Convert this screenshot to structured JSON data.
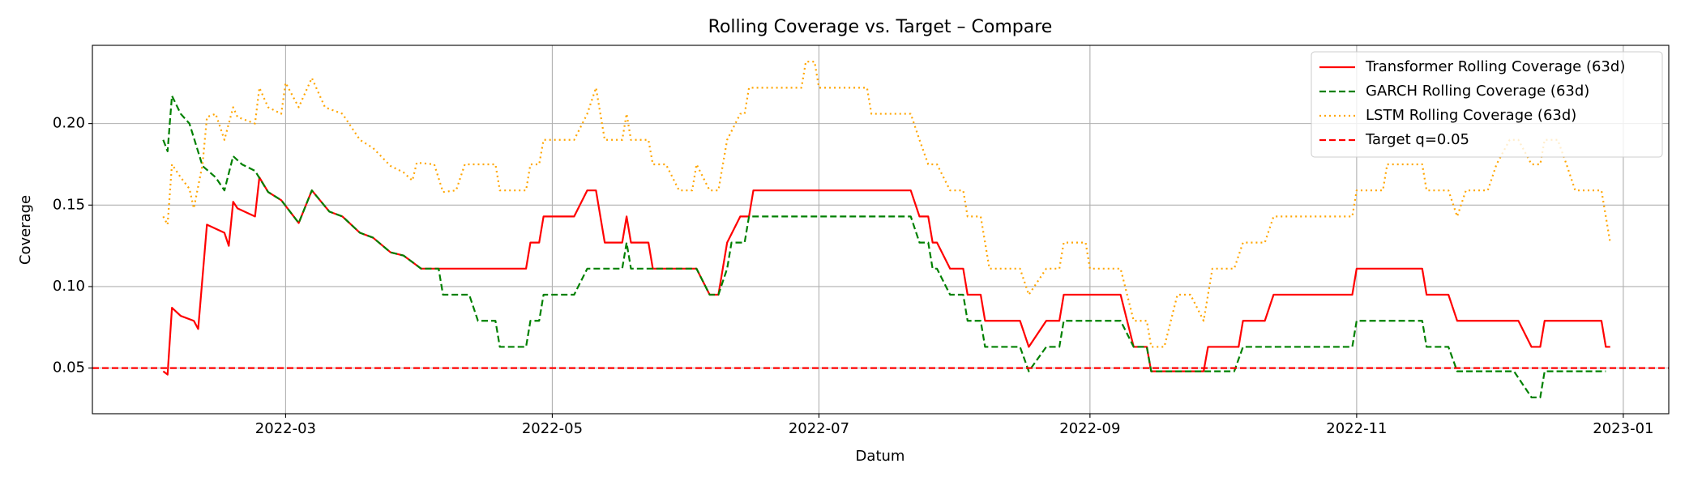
{
  "chart_data": {
    "type": "line",
    "title": "Rolling Coverage vs. Target – Compare",
    "xlabel": "Datum",
    "ylabel": "Coverage",
    "xlim": [
      14.8,
      375.4
    ],
    "ylim": [
      0.022,
      0.248
    ],
    "xticks": [
      {
        "value": 59,
        "label": "2022-03"
      },
      {
        "value": 120,
        "label": "2022-05"
      },
      {
        "value": 181,
        "label": "2022-07"
      },
      {
        "value": 243,
        "label": "2022-09"
      },
      {
        "value": 304,
        "label": "2022-11"
      },
      {
        "value": 365,
        "label": "2023-01"
      }
    ],
    "yticks": [
      0.05,
      {
        "value": 0.1,
        "label": "0.10"
      },
      0.15,
      {
        "value": 0.2,
        "label": "0.20"
      }
    ],
    "grid": true,
    "legend": "upper right",
    "series": [
      {
        "name": "Transformer Rolling Coverage (63d)",
        "color": "red",
        "style": "solid",
        "x": [
          31,
          32,
          33,
          35,
          38,
          39,
          41,
          45,
          46,
          47,
          48,
          52,
          53,
          55,
          58,
          62,
          65,
          69,
          72,
          76,
          79,
          83,
          86,
          90,
          114,
          115,
          117,
          118,
          125,
          128,
          130,
          132,
          136,
          137,
          138,
          142,
          143,
          153,
          156,
          158,
          160,
          163,
          165,
          166,
          202,
          204,
          206,
          207,
          208,
          211,
          214,
          215,
          218,
          219,
          227,
          229,
          233,
          236,
          237,
          250,
          253,
          256,
          257,
          269,
          270,
          277,
          278,
          283,
          285,
          303,
          304,
          319,
          320,
          325,
          327,
          341,
          344,
          346,
          347,
          360,
          361,
          362
        ],
        "values": [
          0.048,
          0.046,
          0.087,
          0.082,
          0.079,
          0.074,
          0.138,
          0.133,
          0.125,
          0.152,
          0.148,
          0.143,
          0.167,
          0.158,
          0.153,
          0.139,
          0.159,
          0.146,
          0.143,
          0.133,
          0.13,
          0.121,
          0.119,
          0.111,
          0.111,
          0.127,
          0.127,
          0.143,
          0.143,
          0.159,
          0.159,
          0.127,
          0.127,
          0.143,
          0.127,
          0.127,
          0.111,
          0.111,
          0.095,
          0.095,
          0.127,
          0.143,
          0.143,
          0.159,
          0.159,
          0.143,
          0.143,
          0.127,
          0.127,
          0.111,
          0.111,
          0.095,
          0.095,
          0.079,
          0.079,
          0.063,
          0.079,
          0.079,
          0.095,
          0.095,
          0.063,
          0.063,
          0.048,
          0.048,
          0.063,
          0.063,
          0.079,
          0.079,
          0.095,
          0.095,
          0.111,
          0.111,
          0.095,
          0.095,
          0.079,
          0.079,
          0.063,
          0.063,
          0.079,
          0.079,
          0.063,
          0.063
        ]
      },
      {
        "name": "GARCH Rolling Coverage (63d)",
        "color": "green",
        "style": "dashed",
        "x": [
          31,
          32,
          33,
          35,
          37,
          40,
          43,
          45,
          47,
          49,
          52,
          55,
          58,
          62,
          65,
          69,
          72,
          76,
          79,
          83,
          86,
          90,
          94,
          95,
          101,
          103,
          107,
          108,
          114,
          115,
          117,
          118,
          125,
          128,
          136,
          137,
          138,
          153,
          156,
          158,
          160,
          161,
          164,
          165,
          202,
          204,
          206,
          207,
          208,
          211,
          214,
          215,
          218,
          219,
          227,
          229,
          233,
          236,
          237,
          250,
          253,
          256,
          257,
          276,
          278,
          303,
          304,
          319,
          320,
          325,
          327,
          340,
          344,
          346,
          347,
          361
        ],
        "values": [
          0.19,
          0.183,
          0.217,
          0.206,
          0.2,
          0.174,
          0.167,
          0.159,
          0.18,
          0.175,
          0.171,
          0.158,
          0.153,
          0.139,
          0.159,
          0.146,
          0.143,
          0.133,
          0.13,
          0.121,
          0.119,
          0.111,
          0.111,
          0.095,
          0.095,
          0.079,
          0.079,
          0.063,
          0.063,
          0.079,
          0.079,
          0.095,
          0.095,
          0.111,
          0.111,
          0.127,
          0.111,
          0.111,
          0.095,
          0.095,
          0.111,
          0.127,
          0.127,
          0.143,
          0.143,
          0.127,
          0.127,
          0.111,
          0.111,
          0.095,
          0.095,
          0.079,
          0.079,
          0.063,
          0.063,
          0.048,
          0.063,
          0.063,
          0.079,
          0.079,
          0.063,
          0.063,
          0.048,
          0.048,
          0.063,
          0.063,
          0.079,
          0.079,
          0.063,
          0.063,
          0.048,
          0.048,
          0.032,
          0.032,
          0.048,
          0.048
        ]
      },
      {
        "name": "LSTM Rolling Coverage (63d)",
        "color": "orange",
        "style": "dotted",
        "x": [
          31,
          32,
          33,
          35,
          37,
          38,
          40,
          41,
          43,
          45,
          47,
          48,
          52,
          53,
          55,
          58,
          59,
          62,
          65,
          68,
          72,
          76,
          79,
          83,
          86,
          88,
          89,
          93,
          95,
          98,
          100,
          107,
          108,
          114,
          115,
          117,
          118,
          125,
          128,
          130,
          132,
          136,
          137,
          138,
          142,
          143,
          146,
          149,
          152,
          153,
          156,
          158,
          160,
          163,
          164,
          165,
          177,
          178,
          180,
          181,
          192,
          193,
          202,
          204,
          206,
          208,
          211,
          214,
          215,
          218,
          219,
          220,
          227,
          229,
          233,
          236,
          237,
          242,
          243,
          250,
          253,
          256,
          257,
          260,
          263,
          266,
          269,
          271,
          276,
          278,
          283,
          285,
          303,
          304,
          310,
          311,
          319,
          320,
          325,
          327,
          329,
          334,
          336,
          339,
          341,
          344,
          346,
          347,
          350,
          352,
          354,
          360,
          362
        ],
        "values": [
          0.143,
          0.138,
          0.175,
          0.167,
          0.16,
          0.148,
          0.175,
          0.204,
          0.206,
          0.19,
          0.21,
          0.204,
          0.2,
          0.222,
          0.21,
          0.206,
          0.225,
          0.21,
          0.228,
          0.21,
          0.206,
          0.19,
          0.185,
          0.174,
          0.17,
          0.165,
          0.176,
          0.175,
          0.158,
          0.159,
          0.175,
          0.175,
          0.159,
          0.159,
          0.175,
          0.175,
          0.19,
          0.19,
          0.206,
          0.222,
          0.19,
          0.19,
          0.206,
          0.19,
          0.19,
          0.175,
          0.175,
          0.159,
          0.159,
          0.175,
          0.159,
          0.159,
          0.19,
          0.206,
          0.206,
          0.222,
          0.222,
          0.238,
          0.238,
          0.222,
          0.222,
          0.206,
          0.206,
          0.19,
          0.175,
          0.175,
          0.159,
          0.159,
          0.143,
          0.143,
          0.127,
          0.111,
          0.111,
          0.095,
          0.111,
          0.111,
          0.127,
          0.127,
          0.111,
          0.111,
          0.079,
          0.079,
          0.063,
          0.063,
          0.095,
          0.095,
          0.079,
          0.111,
          0.111,
          0.127,
          0.127,
          0.143,
          0.143,
          0.159,
          0.159,
          0.175,
          0.175,
          0.159,
          0.159,
          0.143,
          0.159,
          0.159,
          0.175,
          0.19,
          0.19,
          0.175,
          0.175,
          0.19,
          0.19,
          0.175,
          0.159,
          0.159,
          0.127
        ]
      }
    ],
    "reference_lines": [
      {
        "name": "Target q=0.05",
        "value": 0.05,
        "color": "red",
        "style": "dashed"
      }
    ]
  }
}
